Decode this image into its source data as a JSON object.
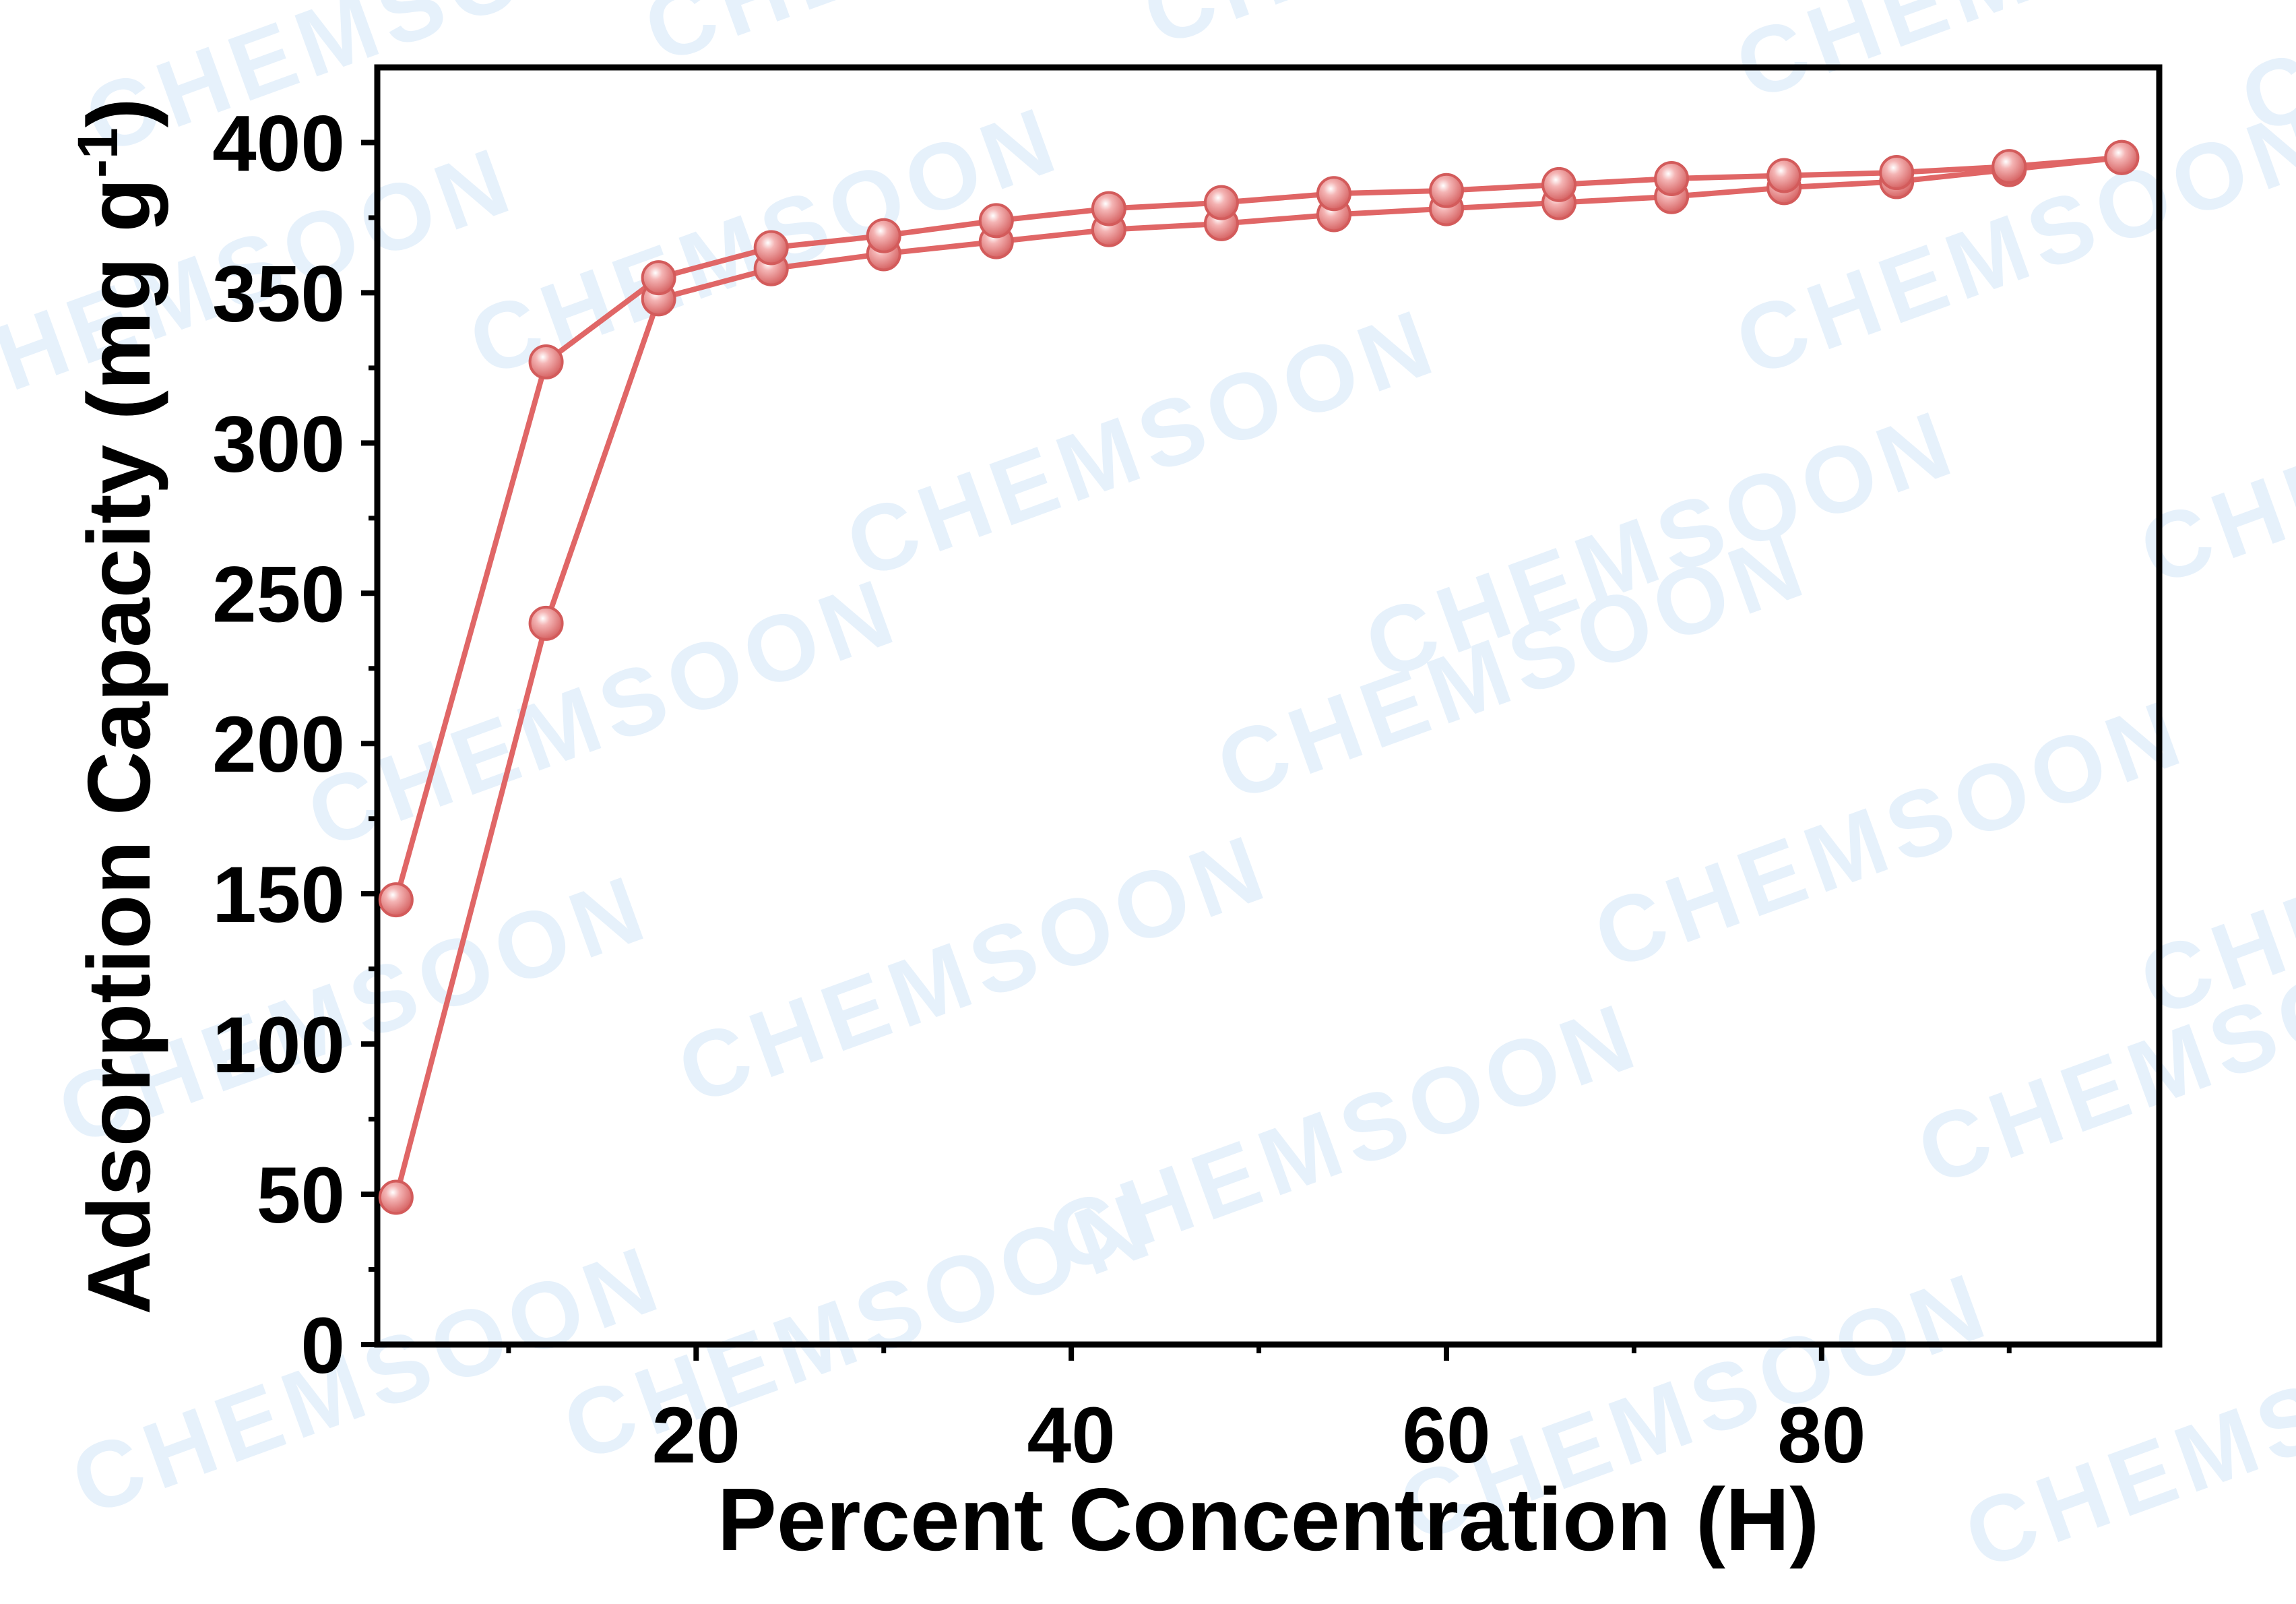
{
  "watermark": {
    "text": "CHEMSOON"
  },
  "chart_data": {
    "type": "line",
    "xlabel": "Percent Concentration (H)",
    "ylabel": {
      "main": "Adsorption Capacity (mg g",
      "sup": "-1",
      "close": ")"
    },
    "xlim": [
      3,
      98
    ],
    "ylim": [
      0,
      425
    ],
    "xticks": [
      20,
      40,
      60,
      80
    ],
    "xtick_labels": [
      "20",
      "40",
      "60",
      "80"
    ],
    "yticks": [
      0,
      50,
      100,
      150,
      200,
      250,
      300,
      350,
      400
    ],
    "ytick_labels": [
      "0",
      "50",
      "100",
      "150",
      "200",
      "250",
      "300",
      "350",
      "400"
    ],
    "grid": false,
    "legend": "none",
    "color": "#e06666",
    "series": [
      {
        "x": [
          4,
          12,
          18,
          24,
          30,
          36,
          42,
          48,
          54,
          60,
          66,
          72,
          78,
          84,
          90,
          96
        ],
        "y": [
          49,
          240,
          348,
          358,
          363,
          367,
          371,
          373,
          376,
          378,
          380,
          382,
          385,
          387,
          391,
          395
        ]
      },
      {
        "x": [
          4,
          12,
          18,
          24,
          30,
          36,
          42,
          48,
          54,
          60,
          66,
          72,
          78,
          84,
          90,
          96
        ],
        "y": [
          148,
          327,
          355,
          365,
          369,
          374,
          378,
          380,
          383,
          384,
          386,
          388,
          389,
          390,
          392,
          395
        ]
      }
    ]
  }
}
